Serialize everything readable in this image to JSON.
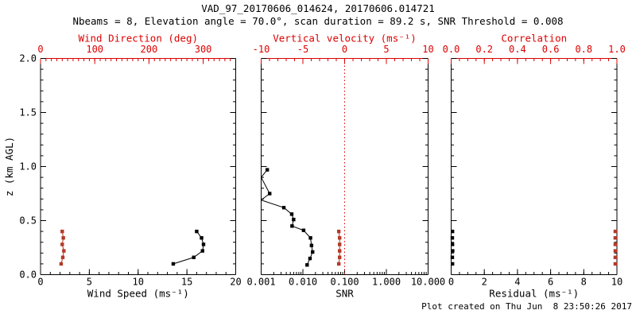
{
  "header": {
    "title": "VAD_97_20170606_014624, 20170606.014721",
    "subtitle": "Nbeams = 8, Elevation angle = 70.0°, scan duration = 89.2 s, SNR Threshold = 0.008"
  },
  "footer": {
    "created": "Plot created on Thu Jun  8 23:50:26 2017"
  },
  "colors": {
    "background": "#ffffff",
    "black": "#000000",
    "axis_red": "#dd0000",
    "data_red": "#b23a28"
  },
  "y_axis": {
    "label": "z (km AGL)",
    "min": 0.0,
    "max": 2.0,
    "ticks": [
      0.0,
      0.5,
      1.0,
      1.5,
      2.0
    ],
    "tick_labels": [
      "0.0",
      "0.5",
      "1.0",
      "1.5",
      "2.0"
    ],
    "minor": 0.1
  },
  "chart_data": [
    {
      "type": "line",
      "name": "wind-panel",
      "show_y_labels": true,
      "top_axis": {
        "label": "Wind Direction (deg)",
        "min": 0,
        "max": 360,
        "ticks": [
          0,
          100,
          200,
          300
        ],
        "tick_labels": [
          "0",
          "100",
          "200",
          "300"
        ],
        "minor": 10,
        "scale": "linear",
        "color": "axis_red"
      },
      "bottom_axis": {
        "label": "Wind Speed (ms⁻¹)",
        "min": 0,
        "max": 20,
        "ticks": [
          0,
          5,
          10,
          15,
          20
        ],
        "tick_labels": [
          "0",
          "5",
          "10",
          "15",
          "20"
        ],
        "minor": 1,
        "scale": "linear",
        "color": "black"
      },
      "series": [
        {
          "name": "wind-speed-profile",
          "axis": "bottom",
          "color": "black",
          "line": true,
          "z": [
            0.1,
            0.16,
            0.22,
            0.28,
            0.34,
            0.4
          ],
          "values": [
            13.6,
            15.7,
            16.6,
            16.7,
            16.5,
            16.0
          ]
        },
        {
          "name": "wind-direction-profile",
          "axis": "top",
          "color": "data_red",
          "line": true,
          "z": [
            0.1,
            0.16,
            0.22,
            0.28,
            0.34,
            0.4
          ],
          "values": [
            38,
            41,
            43,
            40,
            42,
            40
          ]
        }
      ]
    },
    {
      "type": "line",
      "name": "snr-panel",
      "show_y_labels": false,
      "top_axis": {
        "label": "Vertical velocity (ms⁻¹)",
        "min": -10,
        "max": 10,
        "ticks": [
          -10,
          -5,
          0,
          5,
          10
        ],
        "tick_labels": [
          "-10",
          "-5",
          "0",
          "5",
          "10"
        ],
        "minor": 1,
        "scale": "linear",
        "color": "axis_red"
      },
      "bottom_axis": {
        "label": "SNR",
        "min": 0.001,
        "max": 10,
        "ticks": [
          0.001,
          0.01,
          0.1,
          1,
          10
        ],
        "tick_labels": [
          "0.001",
          "0.010",
          "0.100",
          "1.000",
          "10.000"
        ],
        "scale": "log",
        "color": "black"
      },
      "reference_line": {
        "axis": "top",
        "value": 0,
        "color": "axis_red",
        "style": "dotted"
      },
      "series": [
        {
          "name": "snr-profile",
          "axis": "bottom",
          "color": "black",
          "line": true,
          "z": [
            0.09,
            0.15,
            0.21,
            0.27,
            0.34,
            0.41,
            0.45,
            0.51,
            0.56,
            0.62,
            0.69,
            0.75,
            0.9,
            0.97
          ],
          "values": [
            0.0126,
            0.0148,
            0.0171,
            0.0161,
            0.0152,
            0.0104,
            0.0055,
            0.006,
            0.0054,
            0.0035,
            0.001,
            0.0016,
            0.001,
            0.0014
          ],
          "clip": [
            false,
            false,
            false,
            false,
            false,
            false,
            false,
            false,
            false,
            false,
            true,
            false,
            true,
            false
          ]
        },
        {
          "name": "vertical-velocity-profile",
          "axis": "top",
          "color": "data_red",
          "line": true,
          "z": [
            0.1,
            0.16,
            0.22,
            0.28,
            0.34,
            0.4
          ],
          "values": [
            -0.7,
            -0.6,
            -0.6,
            -0.6,
            -0.6,
            -0.7
          ]
        }
      ]
    },
    {
      "type": "line",
      "name": "residual-panel",
      "show_y_labels": false,
      "top_axis": {
        "label": "Correlation",
        "min": 0,
        "max": 1,
        "ticks": [
          0,
          0.2,
          0.4,
          0.6,
          0.8,
          1
        ],
        "tick_labels": [
          "0.0",
          "0.2",
          "0.4",
          "0.6",
          "0.8",
          "1.0"
        ],
        "minor": 0.05,
        "scale": "linear",
        "color": "axis_red"
      },
      "bottom_axis": {
        "label": "Residual (ms⁻¹)",
        "min": 0,
        "max": 10,
        "ticks": [
          0,
          2,
          4,
          6,
          8,
          10
        ],
        "tick_labels": [
          "0",
          "2",
          "4",
          "6",
          "8",
          "10"
        ],
        "minor": 0.5,
        "scale": "linear",
        "color": "black"
      },
      "series": [
        {
          "name": "residual-profile",
          "axis": "bottom",
          "color": "black",
          "line": false,
          "z": [
            0.1,
            0.16,
            0.22,
            0.28,
            0.34,
            0.4
          ],
          "values": [
            0.08,
            0.07,
            0.09,
            0.08,
            0.07,
            0.08
          ]
        },
        {
          "name": "correlation-profile",
          "axis": "top",
          "color": "data_red",
          "line": false,
          "z": [
            0.1,
            0.16,
            0.22,
            0.28,
            0.34,
            0.4
          ],
          "values": [
            0.99,
            0.99,
            0.99,
            0.99,
            0.99,
            0.99
          ]
        }
      ]
    }
  ]
}
